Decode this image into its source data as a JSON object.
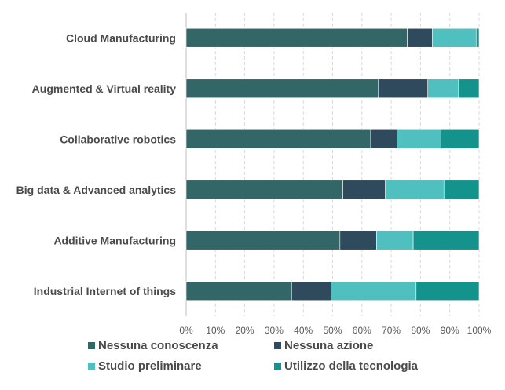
{
  "chart_data": {
    "type": "bar",
    "orientation": "horizontal",
    "stacked": true,
    "percent_stacked": true,
    "categories": [
      "Cloud Manufacturing",
      "Augmented & Virtual reality",
      "Collaborative robotics",
      "Big data & Advanced analytics",
      "Additive Manufacturing",
      "Industrial Internet of things"
    ],
    "series": [
      {
        "name": "Nessuna conoscenza",
        "color": "#336666",
        "values": [
          75.5,
          65.5,
          63,
          53.5,
          52.5,
          36
        ]
      },
      {
        "name": "Nessuna azione",
        "color": "#2e4a5c",
        "values": [
          8.5,
          17,
          9,
          14.5,
          12.5,
          13.5
        ]
      },
      {
        "name": "Studio preliminare",
        "color": "#4fbfbf",
        "values": [
          15,
          10.5,
          15,
          20,
          12.5,
          29
        ]
      },
      {
        "name": "Utilizzo della tecnologia",
        "color": "#14938c",
        "values": [
          1,
          7,
          13,
          12,
          22.5,
          21.5
        ]
      }
    ],
    "xlim": [
      0,
      100
    ],
    "xticks": [
      "0%",
      "10%",
      "20%",
      "30%",
      "40%",
      "50%",
      "60%",
      "70%",
      "80%",
      "90%",
      "100%"
    ],
    "grid": "vertical-dashed",
    "legend_position": "bottom"
  }
}
